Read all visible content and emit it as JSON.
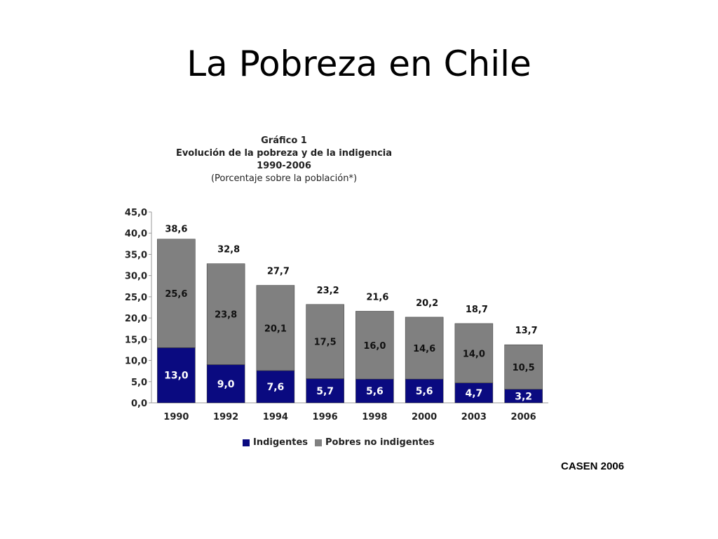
{
  "slide": {
    "title": "La Pobreza en Chile",
    "source": "CASEN 2006"
  },
  "chart_heading": {
    "line1": "Gráfico 1",
    "line2": "Evolución de la pobreza y de la indigencia",
    "line3": "1990-2006",
    "line4": "(Porcentaje sobre la población*)"
  },
  "colors": {
    "indigentes": "#0a0a80",
    "pobres_no_indigentes": "#808080"
  },
  "chart_data": {
    "type": "bar",
    "stacked": true,
    "categories": [
      "1990",
      "1992",
      "1994",
      "1996",
      "1998",
      "2000",
      "2003",
      "2006"
    ],
    "series": [
      {
        "name": "Indigentes",
        "values": [
          13.0,
          9.0,
          7.6,
          5.7,
          5.6,
          5.6,
          4.7,
          3.2
        ],
        "labels": [
          "13,0",
          "9,0",
          "7,6",
          "5,7",
          "5,6",
          "5,6",
          "4,7",
          "3,2"
        ]
      },
      {
        "name": "Pobres no indigentes",
        "values": [
          25.6,
          23.8,
          20.1,
          17.5,
          16.0,
          14.6,
          14.0,
          10.5
        ],
        "labels": [
          "25,6",
          "23,8",
          "20,1",
          "17,5",
          "16,0",
          "14,6",
          "14,0",
          "10,5"
        ]
      }
    ],
    "totals": [
      38.6,
      32.8,
      27.7,
      23.2,
      21.6,
      20.2,
      18.7,
      13.7
    ],
    "total_labels": [
      "38,6",
      "32,8",
      "27,7",
      "23,2",
      "21,6",
      "20,2",
      "18,7",
      "13,7"
    ],
    "ylim": [
      0,
      45
    ],
    "yticks": [
      "0,0",
      "5,0",
      "10,0",
      "15,0",
      "20,0",
      "25,0",
      "30,0",
      "35,0",
      "40,0",
      "45,0"
    ],
    "grid": false,
    "legend_position": "bottom"
  }
}
